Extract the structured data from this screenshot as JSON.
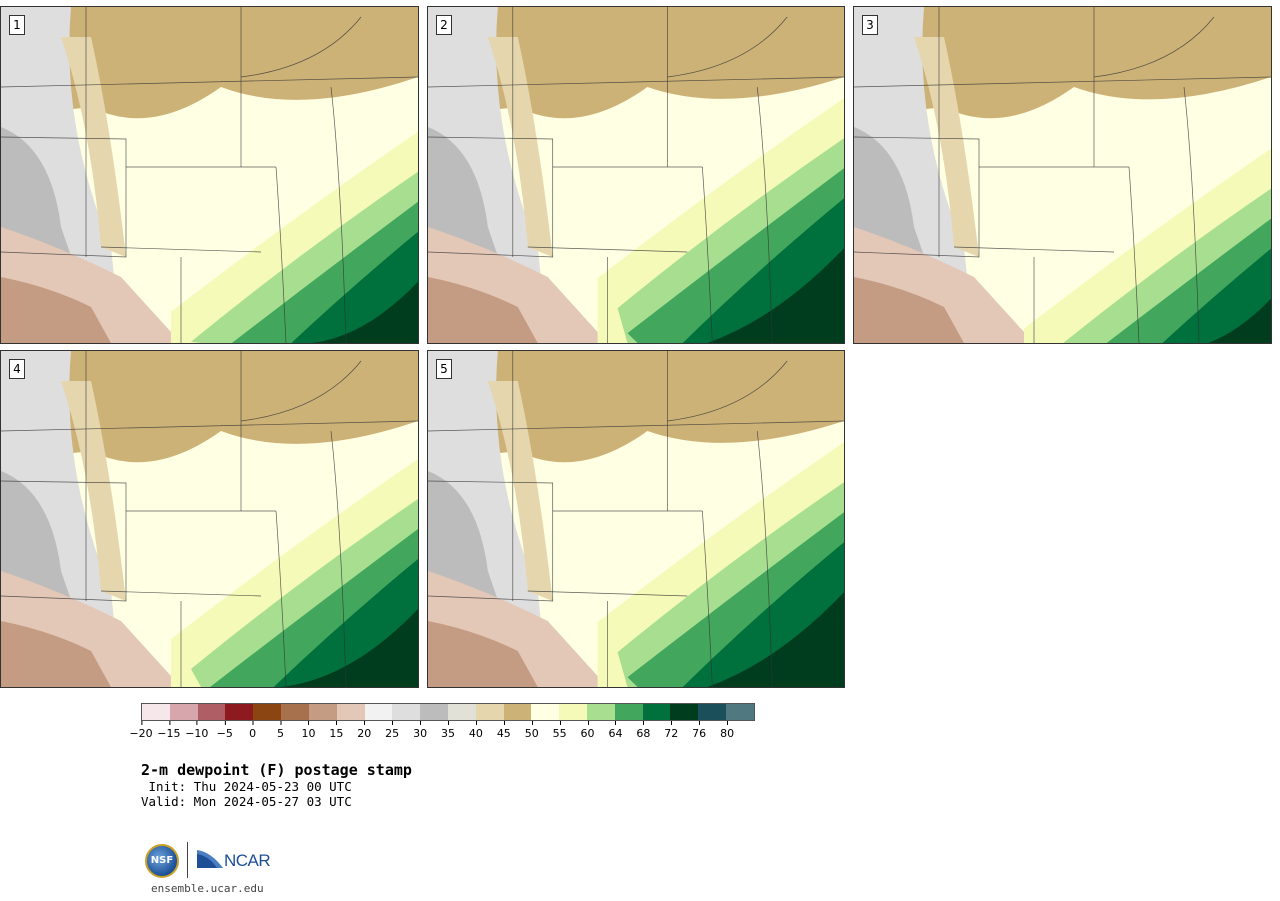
{
  "panels": [
    {
      "label": "1",
      "humid_level": 0.45
    },
    {
      "label": "2",
      "humid_level": 0.55
    },
    {
      "label": "3",
      "humid_level": 0.4
    },
    {
      "label": "4",
      "humid_level": 0.5
    },
    {
      "label": "5",
      "humid_level": 0.55
    }
  ],
  "colorbar": {
    "colors": [
      "#f6e7ea",
      "#d7a6ad",
      "#b05e66",
      "#8c1a1f",
      "#8a4512",
      "#a8714e",
      "#c49c84",
      "#e3c7b7",
      "#f2f2f2",
      "#dedede",
      "#bcbcbc",
      "#e1e1d7",
      "#e5d6ad",
      "#cdb277",
      "#ffffe3",
      "#f5fab8",
      "#a8de90",
      "#42a75c",
      "#00703c",
      "#003d1f",
      "#1b4f5a",
      "#4f7880"
    ],
    "ticks": [
      "−20",
      "−15",
      "−10",
      "−5",
      "0",
      "5",
      "10",
      "15",
      "20",
      "25",
      "30",
      "35",
      "40",
      "45",
      "50",
      "55",
      "60",
      "64",
      "68",
      "72",
      "76",
      "80"
    ]
  },
  "title": "2-m dewpoint (F) postage stamp",
  "init": " Init: Thu 2024-05-23 00 UTC",
  "valid": "Valid: Mon 2024-05-27 03 UTC",
  "logos": {
    "nsf": "NSF",
    "ncar": "NCAR"
  },
  "url": "ensemble.ucar.edu"
}
